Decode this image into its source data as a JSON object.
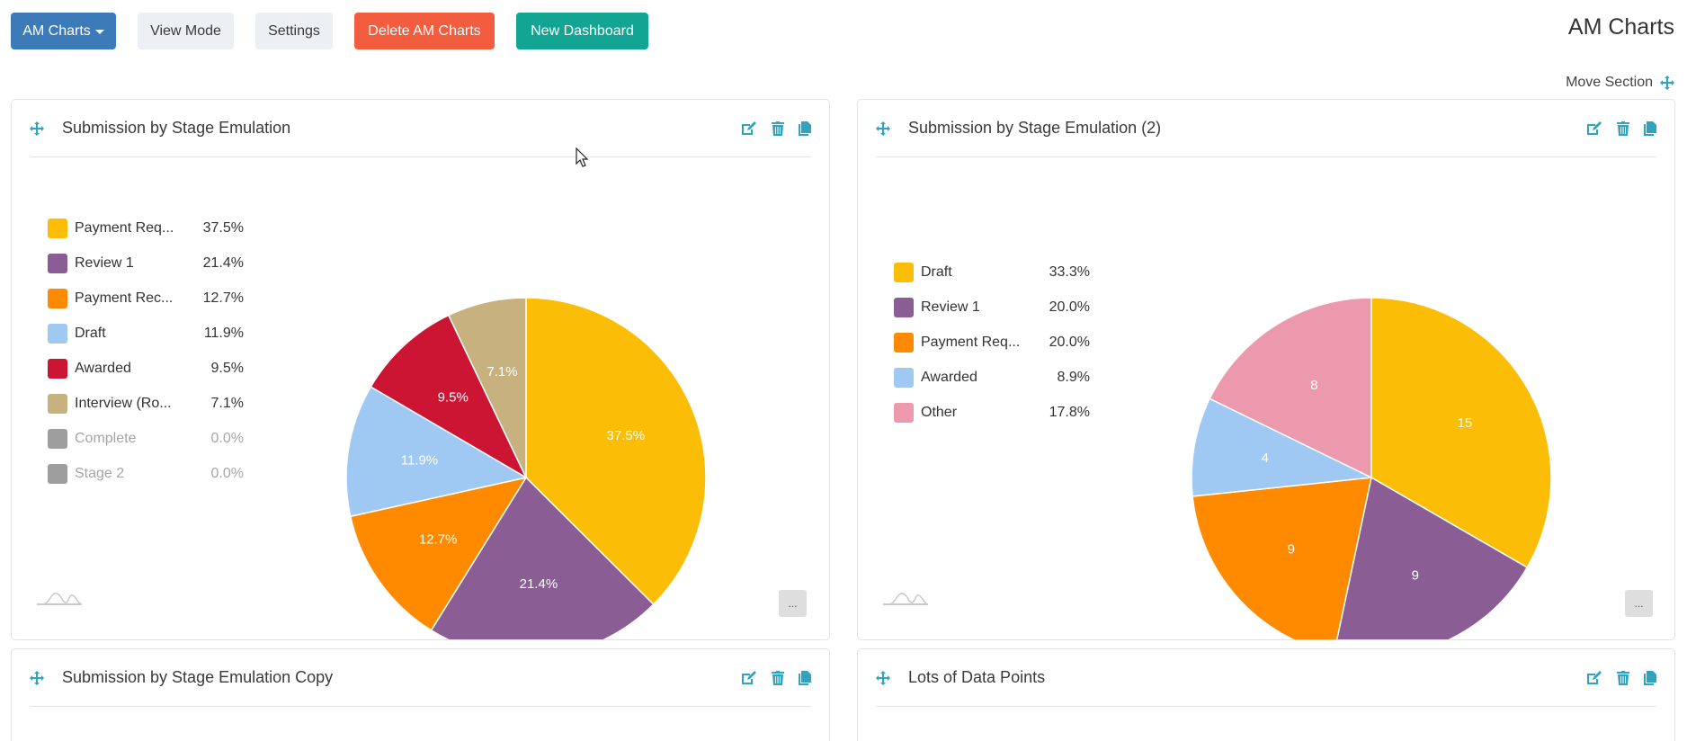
{
  "toolbar": {
    "dashboard_dropdown": "AM Charts",
    "view_mode": "View Mode",
    "settings": "Settings",
    "delete": "Delete AM Charts",
    "new_dashboard": "New Dashboard"
  },
  "page_title": "AM Charts",
  "move_section": "Move Section",
  "colors": {
    "primary": "#3d7ab8",
    "danger": "#f25c3f",
    "teal": "#12a594",
    "icon": "#2fa4c0"
  },
  "panels": [
    {
      "title": "Submission by Stage Emulation",
      "more_label": "..."
    },
    {
      "title": "Submission by Stage Emulation (2)",
      "more_label": "..."
    },
    {
      "title": "Submission by Stage Emulation Copy"
    },
    {
      "title": "Lots of Data Points"
    }
  ],
  "chart_data": [
    {
      "type": "pie",
      "title": "Submission by Stage Emulation",
      "label_format": "percent",
      "legend": "left",
      "categories": [
        "Payment Req...",
        "Review 1",
        "Payment Rec...",
        "Draft",
        "Awarded",
        "Interview (Ro...",
        "Complete",
        "Stage 2"
      ],
      "values": [
        37.5,
        21.4,
        12.7,
        11.9,
        9.5,
        7.1,
        0.0,
        0.0
      ],
      "value_labels": [
        "37.5%",
        "21.4%",
        "12.7%",
        "11.9%",
        "9.5%",
        "7.1%",
        "0.0%",
        "0.0%"
      ],
      "colors": [
        "#fbbd05",
        "#8a5d94",
        "#ff8a00",
        "#9fc9f2",
        "#cc1533",
        "#c7b27f",
        "#9e9e9e",
        "#9e9e9e"
      ],
      "disabled": [
        false,
        false,
        false,
        false,
        false,
        false,
        true,
        true
      ]
    },
    {
      "type": "pie",
      "title": "Submission by Stage Emulation (2)",
      "label_format": "value",
      "legend": "left",
      "categories": [
        "Draft",
        "Review 1",
        "Payment Req...",
        "Awarded",
        "Other"
      ],
      "values": [
        15,
        9,
        9,
        4,
        8
      ],
      "value_labels": [
        "33.3%",
        "20.0%",
        "20.0%",
        "8.9%",
        "17.8%"
      ],
      "colors": [
        "#fbbd05",
        "#8a5d94",
        "#ff8a00",
        "#9fc9f2",
        "#ec99ad"
      ],
      "disabled": [
        false,
        false,
        false,
        false,
        false
      ]
    }
  ]
}
